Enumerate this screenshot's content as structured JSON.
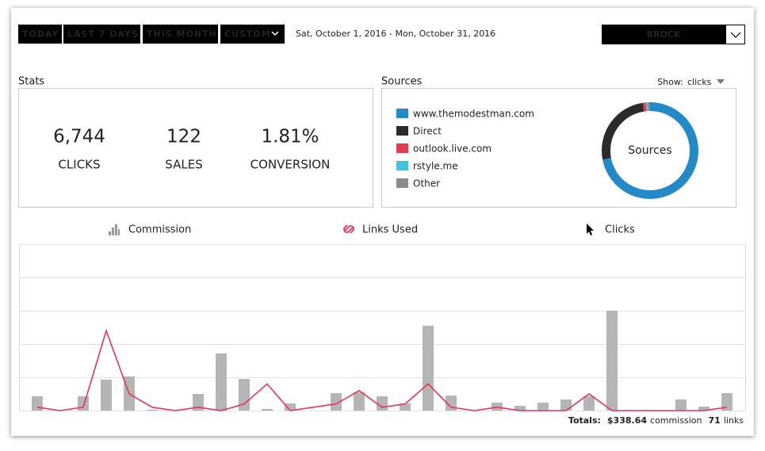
{
  "toolbar": {
    "ranges": [
      "TODAY",
      "LAST 7 DAYS",
      "THIS MONTH",
      "CUSTOM"
    ],
    "date_range": "Sat, October 1, 2016 - Mon, October 31, 2016",
    "account": "BROCK"
  },
  "stats": {
    "title": "Stats",
    "items": [
      {
        "value": "6,744",
        "label": "CLICKS"
      },
      {
        "value": "122",
        "label": "SALES"
      },
      {
        "value": "1.81%",
        "label": "CONVERSION"
      }
    ]
  },
  "sources": {
    "title": "Sources",
    "show_label": "Show:",
    "show_value": "clicks",
    "center_label": "Sources",
    "items": [
      {
        "name": "www.themodestman.com",
        "color": "#238ac7",
        "value": 72
      },
      {
        "name": "Direct",
        "color": "#2b2b2b",
        "value": 25.6
      },
      {
        "name": "outlook.live.com",
        "color": "#e03c4e",
        "value": 1
      },
      {
        "name": "rstyle.me",
        "color": "#45c4d9",
        "value": 0.7
      },
      {
        "name": "Other",
        "color": "#8a8a8a",
        "value": 0.7
      }
    ]
  },
  "tabs": [
    "Commission",
    "Links Used",
    "Clicks"
  ],
  "chart_data": {
    "type": "combo",
    "categories": [
      null,
      null,
      null,
      null,
      null,
      null,
      null,
      null,
      null,
      null,
      null,
      null,
      null,
      null,
      null,
      null,
      null,
      null,
      null,
      null,
      null,
      null,
      null,
      null,
      null,
      null,
      null,
      null,
      null,
      null,
      null
    ],
    "ylim": [
      0,
      100
    ],
    "yticks": [
      0,
      20,
      40,
      60,
      80,
      100
    ],
    "y2lim": [
      0,
      50
    ],
    "grid": true,
    "series": [
      {
        "kind": "bar",
        "color": "#b5b5b5",
        "values": [
          8.6,
          0,
          8.6,
          18.6,
          20.5,
          0.5,
          0,
          10,
          34.3,
          19,
          1,
          4.3,
          0,
          10.5,
          11,
          8.6,
          4.3,
          51,
          9,
          0,
          4.8,
          2.9,
          4.8,
          6.7,
          8.6,
          60,
          0,
          0,
          6.7,
          2.4,
          10.5
        ]
      },
      {
        "kind": "line",
        "color": "#e8345a",
        "axis": "y2",
        "values": [
          1,
          0,
          1,
          24,
          5,
          1,
          0,
          1,
          0,
          2,
          8,
          0,
          1,
          2,
          6,
          1,
          2,
          8,
          1,
          0,
          1,
          0,
          0,
          0,
          5,
          0,
          0,
          0,
          0,
          0,
          1
        ]
      }
    ]
  },
  "totals": {
    "label": "Totals:",
    "commission": "$338.64",
    "commission_label": "commission",
    "links": "71",
    "links_label": "links"
  }
}
